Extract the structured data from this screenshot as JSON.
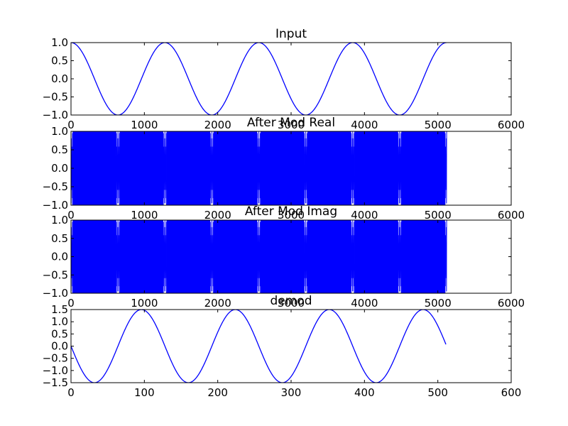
{
  "chart_data": [
    {
      "type": "line",
      "title": "Input",
      "xlabel": "",
      "ylabel": "",
      "xlim": [
        0,
        6000
      ],
      "ylim": [
        -1.0,
        1.0
      ],
      "xticks": [
        0,
        1000,
        2000,
        3000,
        4000,
        5000,
        6000
      ],
      "yticks": [
        -1.0,
        -0.5,
        0.0,
        0.5,
        1.0
      ],
      "xtick_labels": [
        "0",
        "1000",
        "2000",
        "3000",
        "4000",
        "5000",
        "6000"
      ],
      "ytick_labels": [
        "−1.0",
        "−0.5",
        "0.0",
        "0.5",
        "1.0"
      ],
      "grid": false,
      "series": [
        {
          "kind": "cosine",
          "x_start": 0,
          "x_end": 5120,
          "amplitude": 1.0,
          "period": 1280,
          "phase_deg": 0,
          "color": "#0000ff"
        }
      ]
    },
    {
      "type": "line",
      "title": "After Mod Real",
      "xlabel": "",
      "ylabel": "",
      "xlim": [
        0,
        6000
      ],
      "ylim": [
        -1.0,
        1.0
      ],
      "xticks": [
        0,
        1000,
        2000,
        3000,
        4000,
        5000,
        6000
      ],
      "yticks": [
        -1.0,
        -0.5,
        0.0,
        0.5,
        1.0
      ],
      "xtick_labels": [
        "0",
        "1000",
        "2000",
        "3000",
        "4000",
        "5000",
        "6000"
      ],
      "ytick_labels": [
        "−1.0",
        "−0.5",
        "0.0",
        "0.5",
        "1.0"
      ],
      "grid": false,
      "series": [
        {
          "kind": "dense-fill",
          "x_start": 0,
          "x_end": 5120,
          "amplitude": 1.0,
          "gap_centers": [
            0,
            640,
            1280,
            1920,
            2560,
            3200,
            3840,
            4480,
            5120
          ],
          "gap_halfwidth": 22,
          "color": "#0000ff"
        }
      ]
    },
    {
      "type": "line",
      "title": "After Mod Imag",
      "xlabel": "",
      "ylabel": "",
      "xlim": [
        0,
        6000
      ],
      "ylim": [
        -1.0,
        1.0
      ],
      "xticks": [
        0,
        1000,
        2000,
        3000,
        4000,
        5000,
        6000
      ],
      "yticks": [
        -1.0,
        -0.5,
        0.0,
        0.5,
        1.0
      ],
      "xtick_labels": [
        "0",
        "1000",
        "2000",
        "3000",
        "4000",
        "5000",
        "6000"
      ],
      "ytick_labels": [
        "−1.0",
        "−0.5",
        "0.0",
        "0.5",
        "1.0"
      ],
      "grid": false,
      "series": [
        {
          "kind": "dense-fill",
          "x_start": 0,
          "x_end": 5120,
          "amplitude": 1.0,
          "gap_centers": [
            0,
            640,
            1280,
            1920,
            2560,
            3200,
            3840,
            4480,
            5120
          ],
          "gap_halfwidth": 22,
          "color": "#0000ff"
        }
      ]
    },
    {
      "type": "line",
      "title": "demod",
      "xlabel": "",
      "ylabel": "",
      "xlim": [
        0,
        600
      ],
      "ylim": [
        -1.5,
        1.5
      ],
      "xticks": [
        0,
        100,
        200,
        300,
        400,
        500,
        600
      ],
      "yticks": [
        -1.5,
        -1.0,
        -0.5,
        0.0,
        0.5,
        1.0,
        1.5
      ],
      "xtick_labels": [
        "0",
        "100",
        "200",
        "300",
        "400",
        "500",
        "600"
      ],
      "ytick_labels": [
        "−1.5",
        "−1.0",
        "−0.5",
        "0.0",
        "0.5",
        "1.0",
        "1.5"
      ],
      "grid": false,
      "series": [
        {
          "kind": "sine",
          "x_start": 0,
          "x_end": 511,
          "amplitude": -1.5,
          "period": 128,
          "phase_deg": 0,
          "color": "#0000ff"
        }
      ]
    }
  ]
}
